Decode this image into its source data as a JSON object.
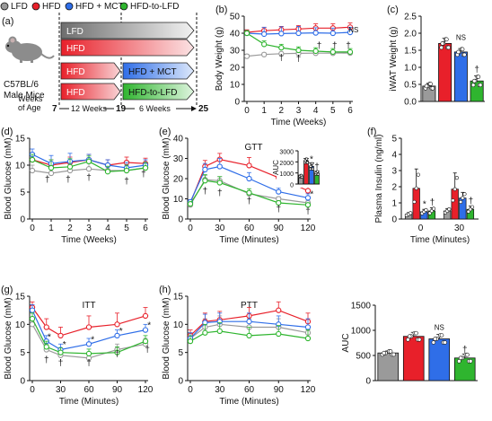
{
  "colors": {
    "LFD": "#9a9a9a",
    "HFD": "#e8202a",
    "HFD + MCT": "#2f6ee8",
    "HFD-to-LFD": "#2fb52f",
    "dark": "#111111"
  },
  "legend": {
    "items": [
      {
        "name": "LFD",
        "color": "#9a9a9a"
      },
      {
        "name": "HFD",
        "color": "#e8202a"
      },
      {
        "name": "HFD + MCT",
        "color": "#2f6ee8"
      },
      {
        "name": "HFD-to-LFD",
        "color": "#2fb52f"
      }
    ]
  },
  "panel_a": {
    "label": "(a)",
    "mouse_caption_line1": "C57BL/6",
    "mouse_caption_line2": "Male Mice",
    "weeks_of_age_line1": "Weeks",
    "weeks_of_age_line2": "of Age",
    "age_start": "7",
    "age_mid": "19",
    "age_end": "25",
    "span1": "12 Weeks",
    "span2": "6 Weeks",
    "bars": [
      {
        "label": "LFD",
        "phase1": "LFD",
        "phase2": ""
      },
      {
        "label": "HFD",
        "phase1": "HFD",
        "phase2": ""
      },
      {
        "label": "HFD + MCT",
        "phase1": "HFD",
        "phase2": "HFD + MCT"
      },
      {
        "label": "HFD-to-LFD",
        "phase1": "HFD",
        "phase2": "HFD-to-LFD"
      }
    ]
  },
  "chart_data": [
    {
      "id": "b",
      "panel_label": "(b)",
      "type": "line",
      "xlabel": "Time (Weeks)",
      "ylabel": "Body Weight (g)",
      "xlim": [
        0,
        6
      ],
      "ylim": [
        0,
        50
      ],
      "xticks": [
        0,
        1,
        2,
        3,
        4,
        5,
        6
      ],
      "yticks": [
        0,
        10,
        20,
        30,
        40,
        50
      ],
      "x": [
        0,
        1,
        2,
        3,
        4,
        5,
        6
      ],
      "series": [
        {
          "name": "LFD",
          "values": [
            26.5,
            27.5,
            28.0,
            28.2,
            28.3,
            28.3,
            28.4
          ],
          "err": [
            1.2,
            1.0,
            1.0,
            1.0,
            1.0,
            1.0,
            1.0
          ]
        },
        {
          "name": "HFD",
          "values": [
            40.5,
            41.5,
            42.0,
            42.5,
            43.0,
            43.0,
            43.5
          ],
          "err": [
            1.5,
            2.0,
            2.0,
            2.0,
            2.5,
            2.5,
            2.5
          ]
        },
        {
          "name": "HFD + MCT",
          "values": [
            40.0,
            39.5,
            39.8,
            40.0,
            40.2,
            40.0,
            40.5
          ],
          "err": [
            1.5,
            4.0,
            4.0,
            4.0,
            3.0,
            3.0,
            3.0
          ]
        },
        {
          "name": "HFD-to-LFD",
          "values": [
            40.0,
            33.5,
            31.5,
            30.0,
            29.5,
            29.0,
            29.0
          ],
          "err": [
            1.5,
            2.0,
            2.0,
            2.0,
            2.0,
            2.0,
            2.0
          ]
        }
      ],
      "annotations": [
        {
          "text": "NS",
          "x": 6.2,
          "y": 40.5
        },
        {
          "text": "†",
          "x": 2,
          "y": 24.0
        },
        {
          "text": "†",
          "x": 3,
          "y": 23.5
        },
        {
          "text": "†",
          "x": 4.2,
          "y": 31.0
        },
        {
          "text": "†",
          "x": 5.1,
          "y": 31.0
        },
        {
          "text": "†",
          "x": 5.9,
          "y": 31.0
        }
      ]
    },
    {
      "id": "c",
      "panel_label": "(c)",
      "type": "bar",
      "ylabel": "iWAT Weight (g)",
      "ylim": [
        0,
        2.5
      ],
      "yticks": [
        0.0,
        0.5,
        1.0,
        1.5,
        2.0,
        2.5
      ],
      "categories": [
        "LFD",
        "HFD",
        "HFD + MCT",
        "HFD-to-LFD"
      ],
      "values": [
        0.45,
        1.7,
        1.45,
        0.6
      ],
      "err": [
        0.08,
        0.15,
        0.1,
        0.15
      ],
      "annotations": [
        {
          "text": "NS",
          "x": 2,
          "y": 1.8
        },
        {
          "text": "†",
          "x": 3,
          "y": 0.85
        }
      ]
    },
    {
      "id": "d",
      "panel_label": "(d)",
      "type": "line",
      "xlabel": "Time (Weeks)",
      "ylabel": "Blood Glucose (mM)",
      "xlim": [
        0,
        6
      ],
      "ylim": [
        0,
        15
      ],
      "xticks": [
        0,
        1,
        2,
        3,
        4,
        5,
        6
      ],
      "yticks": [
        0,
        5,
        10,
        15
      ],
      "x": [
        0,
        1,
        2,
        3,
        4,
        5,
        6
      ],
      "series": [
        {
          "name": "LFD",
          "values": [
            9.0,
            8.5,
            9.0,
            9.3,
            9.0,
            9.0,
            9.5
          ],
          "err": [
            1.0,
            1.0,
            1.0,
            1.0,
            1.0,
            1.0,
            1.0
          ]
        },
        {
          "name": "HFD",
          "values": [
            11.0,
            10.0,
            10.5,
            11.0,
            10.0,
            10.5,
            10.3
          ],
          "err": [
            1.0,
            1.0,
            1.0,
            1.0,
            1.0,
            1.0,
            1.0
          ]
        },
        {
          "name": "HFD + MCT",
          "values": [
            12.0,
            10.3,
            10.7,
            11.0,
            10.0,
            9.5,
            10.0
          ],
          "err": [
            1.0,
            1.5,
            1.5,
            1.0,
            1.0,
            1.0,
            1.0
          ]
        },
        {
          "name": "HFD-to-LFD",
          "values": [
            11.0,
            9.5,
            9.7,
            10.7,
            8.8,
            9.0,
            9.5
          ],
          "err": [
            1.0,
            1.5,
            1.5,
            1.0,
            1.0,
            1.0,
            1.0
          ]
        }
      ],
      "annotations": [
        {
          "text": "†",
          "x": 0.8,
          "y": 6.8
        },
        {
          "text": "†",
          "x": 1.9,
          "y": 6.8
        },
        {
          "text": "†",
          "x": 3.0,
          "y": 7.2
        },
        {
          "text": "†",
          "x": 5.0,
          "y": 6.5
        },
        {
          "text": "†",
          "x": 5.9,
          "y": 7.8
        }
      ]
    },
    {
      "id": "e",
      "panel_label": "(e)",
      "title": "GTT",
      "type": "line",
      "xlabel": "Time (Minutes)",
      "ylabel": "Blood Glucose (mM)",
      "xlim": [
        0,
        120
      ],
      "ylim": [
        0,
        40
      ],
      "xticks": [
        0,
        30,
        60,
        90,
        120
      ],
      "yticks": [
        0,
        10,
        20,
        30,
        40
      ],
      "x": [
        0,
        15,
        30,
        60,
        90,
        120
      ],
      "series": [
        {
          "name": "LFD",
          "values": [
            7.0,
            19.5,
            19.0,
            12.5,
            10.0,
            8.0
          ],
          "err": [
            1.0,
            2.0,
            2.0,
            1.5,
            1.0,
            1.0
          ]
        },
        {
          "name": "HFD",
          "values": [
            8.0,
            26.0,
            29.5,
            26.5,
            20.5,
            14.0
          ],
          "err": [
            1.5,
            3.0,
            3.0,
            4.0,
            4.0,
            4.0
          ]
        },
        {
          "name": "HFD + MCT",
          "values": [
            8.5,
            24.5,
            26.0,
            20.0,
            13.5,
            10.5
          ],
          "err": [
            1.0,
            3.0,
            4.0,
            3.0,
            2.0,
            2.0
          ]
        },
        {
          "name": "HFD-to-LFD",
          "values": [
            7.5,
            19.0,
            18.0,
            13.0,
            8.0,
            7.0
          ],
          "err": [
            1.0,
            3.0,
            3.0,
            2.0,
            1.0,
            1.0
          ]
        }
      ],
      "annotations": [
        {
          "text": "†",
          "x": 15,
          "y": 12.5
        },
        {
          "text": "†",
          "x": 30,
          "y": 11.5
        },
        {
          "text": "†",
          "x": 60,
          "y": 7.5
        },
        {
          "text": "†",
          "x": 90,
          "y": 3.5
        },
        {
          "text": "†",
          "x": 120,
          "y": 2.5
        },
        {
          "text": "*",
          "x": 94,
          "y": 15.0
        },
        {
          "text": "*",
          "x": 124,
          "y": 11.0
        }
      ],
      "inset": {
        "type": "bar",
        "ylabel": "AUC",
        "ylim": [
          0,
          3000
        ],
        "yticks": [
          0,
          1000,
          2000,
          3000
        ],
        "categories": [
          "LFD",
          "HFD",
          "HFD + MCT",
          "HFD-to-LFD"
        ],
        "values": [
          700,
          2100,
          1600,
          1000
        ],
        "err": [
          100,
          200,
          300,
          150
        ],
        "annotations": [
          {
            "text": "*",
            "x": 2,
            "y": 2000
          },
          {
            "text": "†",
            "x": 3,
            "y": 1300
          }
        ]
      }
    },
    {
      "id": "f",
      "panel_label": "(f)",
      "type": "bar",
      "xlabel": "Time (Minutes)",
      "ylabel": "Plasma Insulin (ng/ml)",
      "ylim": [
        0,
        5
      ],
      "yticks": [
        0,
        1,
        2,
        3,
        4,
        5
      ],
      "groups": [
        "0",
        "30"
      ],
      "series": [
        {
          "name": "LFD",
          "values": [
            0.3,
            0.5
          ],
          "err": [
            0.1,
            0.15
          ]
        },
        {
          "name": "HFD",
          "values": [
            1.9,
            1.85
          ],
          "err": [
            1.2,
            1.0
          ]
        },
        {
          "name": "HFD + MCT",
          "values": [
            0.45,
            1.3
          ],
          "err": [
            0.15,
            0.35
          ]
        },
        {
          "name": "HFD-to-LFD",
          "values": [
            0.5,
            0.6
          ],
          "err": [
            0.2,
            0.2
          ]
        }
      ],
      "annotations": [
        {
          "group": 0,
          "series": 2,
          "text": "*",
          "y": 0.75
        },
        {
          "group": 0,
          "series": 3,
          "text": "†",
          "y": 0.85
        },
        {
          "group": 1,
          "series": 3,
          "text": "†",
          "y": 0.95
        }
      ]
    },
    {
      "id": "g",
      "panel_label": "(g)",
      "title": "ITT",
      "type": "line",
      "xlabel": "Time (Minutes)",
      "ylabel": "Blood Glucose (mM)",
      "xlim": [
        0,
        120
      ],
      "ylim": [
        0,
        15
      ],
      "xticks": [
        0,
        30,
        60,
        90,
        120
      ],
      "yticks": [
        0,
        5,
        10,
        15
      ],
      "x": [
        0,
        15,
        30,
        60,
        90,
        120
      ],
      "series": [
        {
          "name": "LFD",
          "values": [
            10.0,
            5.5,
            4.5,
            4.0,
            5.5,
            6.5
          ],
          "err": [
            1.0,
            1.0,
            0.8,
            0.8,
            1.0,
            1.0
          ]
        },
        {
          "name": "HFD",
          "values": [
            13.0,
            9.5,
            8.0,
            9.5,
            10.0,
            11.5
          ],
          "err": [
            1.0,
            1.5,
            1.5,
            2.0,
            2.0,
            1.5
          ]
        },
        {
          "name": "HFD + MCT",
          "values": [
            12.5,
            7.0,
            5.5,
            6.5,
            8.0,
            9.0
          ],
          "err": [
            1.0,
            1.0,
            1.0,
            1.0,
            1.0,
            1.0
          ]
        },
        {
          "name": "HFD-to-LFD",
          "values": [
            11.0,
            6.0,
            5.0,
            4.8,
            5.0,
            7.0
          ],
          "err": [
            1.0,
            1.0,
            0.8,
            0.8,
            1.0,
            1.0
          ]
        }
      ],
      "annotations": [
        {
          "text": "*",
          "x": 18,
          "y": 7.3
        },
        {
          "text": "*",
          "x": 34,
          "y": 5.9
        },
        {
          "text": "*",
          "x": 64,
          "y": 6.8
        },
        {
          "text": "*",
          "x": 94,
          "y": 8.3
        },
        {
          "text": "*",
          "x": 124,
          "y": 9.3
        },
        {
          "text": "†",
          "x": 15,
          "y": 3.2
        },
        {
          "text": "†",
          "x": 30,
          "y": 2.6
        },
        {
          "text": "†",
          "x": 60,
          "y": 2.6
        },
        {
          "text": "†",
          "x": 90,
          "y": 4.2
        },
        {
          "text": "†",
          "x": 122,
          "y": 5.0
        }
      ]
    },
    {
      "id": "h",
      "panel_label": "(h)",
      "title": "PTT",
      "type": "line",
      "xlabel": "Time (Minutes)",
      "ylabel": "Blood Glucose (mM)",
      "xlim": [
        0,
        120
      ],
      "ylim": [
        0,
        15
      ],
      "xticks": [
        0,
        30,
        60,
        90,
        120
      ],
      "yticks": [
        0,
        5,
        10,
        15
      ],
      "x": [
        0,
        15,
        30,
        60,
        90,
        120
      ],
      "series": [
        {
          "name": "LFD",
          "values": [
            7.5,
            9.5,
            10.0,
            9.5,
            9.5,
            8.5
          ],
          "err": [
            1.0,
            1.5,
            1.5,
            1.5,
            1.5,
            1.0
          ]
        },
        {
          "name": "HFD",
          "values": [
            8.0,
            10.5,
            10.8,
            11.5,
            12.5,
            10.5
          ],
          "err": [
            1.0,
            1.5,
            1.5,
            1.5,
            1.5,
            1.5
          ]
        },
        {
          "name": "HFD + MCT",
          "values": [
            7.5,
            10.3,
            10.5,
            10.5,
            10.0,
            9.5
          ],
          "err": [
            1.0,
            1.5,
            1.5,
            1.5,
            1.5,
            1.5
          ]
        },
        {
          "name": "HFD-to-LFD",
          "values": [
            7.0,
            8.5,
            8.8,
            8.0,
            8.3,
            7.5
          ],
          "err": [
            1.0,
            1.5,
            1.5,
            1.5,
            1.5,
            1.5
          ]
        }
      ],
      "annotations": []
    },
    {
      "id": "h_auc",
      "panel_label": "",
      "type": "bar",
      "ylabel": "AUC",
      "ylim": [
        0,
        1500
      ],
      "yticks": [
        0,
        500,
        1000,
        1500
      ],
      "categories": [
        "LFD",
        "HFD",
        "HFD + MCT",
        "HFD-to-LFD"
      ],
      "values": [
        550,
        880,
        830,
        450
      ],
      "err": [
        40,
        80,
        90,
        80
      ],
      "annotations": [
        {
          "text": "NS",
          "x": 2,
          "y": 1010
        },
        {
          "text": "†",
          "x": 3,
          "y": 560
        }
      ]
    }
  ]
}
